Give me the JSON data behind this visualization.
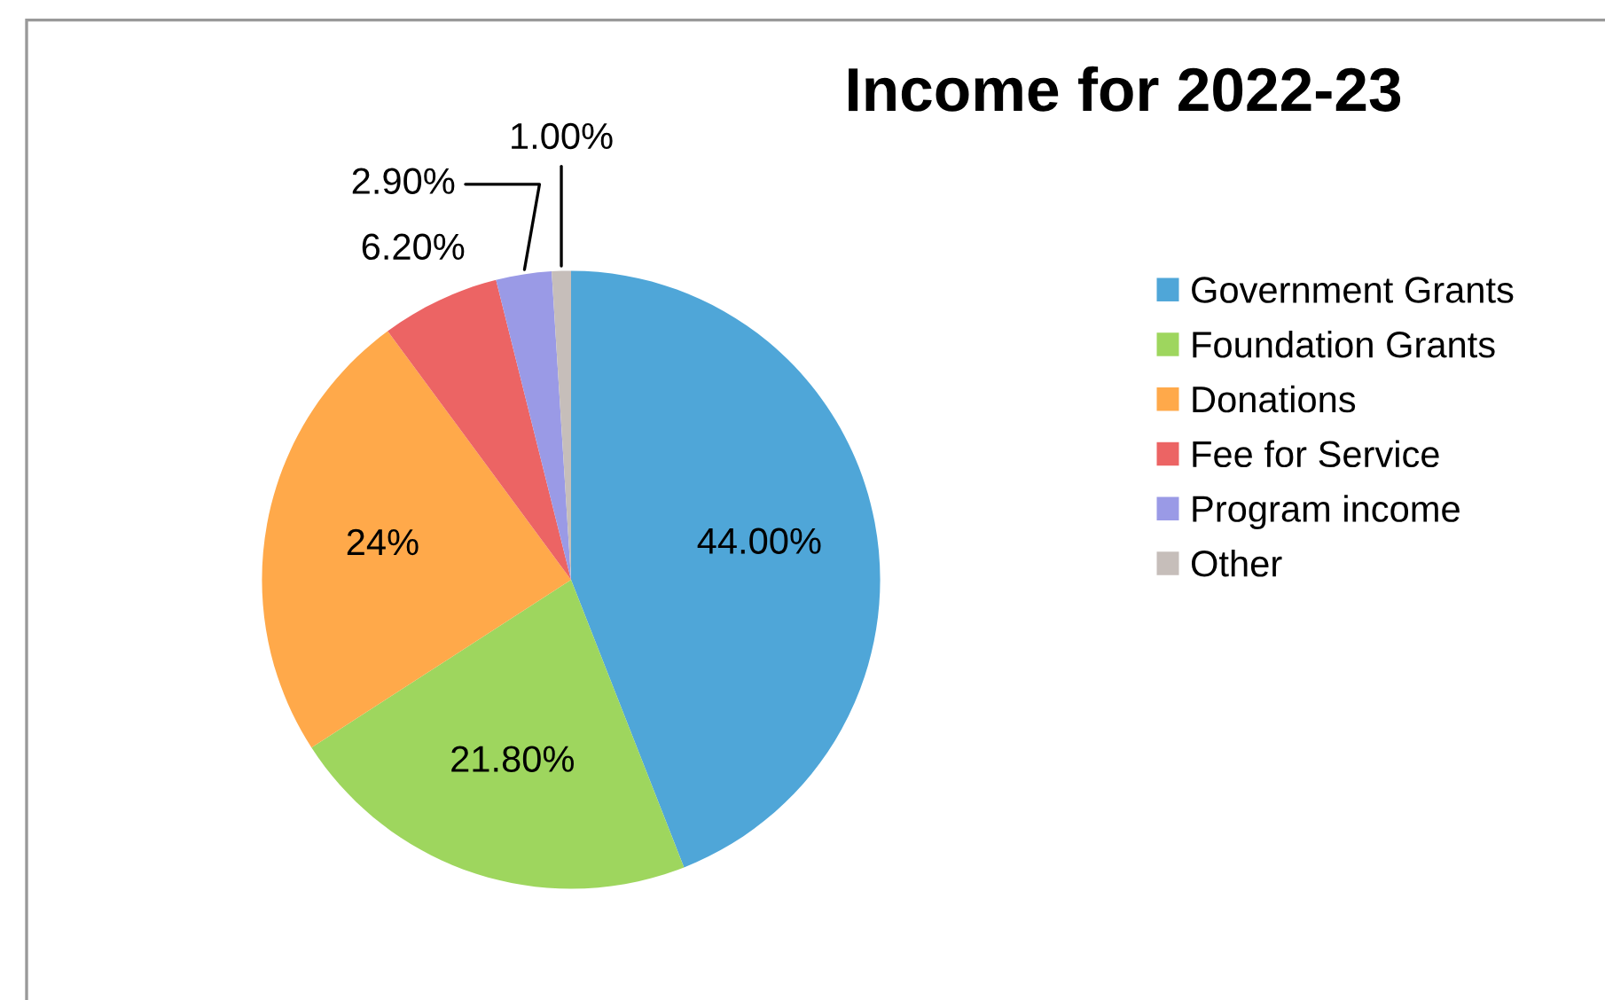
{
  "chart_data": {
    "type": "pie",
    "title": "Income for 2022-23",
    "categories": [
      "Government Grants",
      "Foundation Grants",
      "Donations",
      "Fee for Service",
      "Program income",
      "Other"
    ],
    "values": [
      44.0,
      21.8,
      24,
      6.2,
      2.9,
      1.0
    ],
    "value_labels": [
      "44.00%",
      "21.80%",
      "24%",
      "6.20%",
      "2.90%",
      "1.00%"
    ],
    "colors": [
      "#4fa6d8",
      "#9ed65e",
      "#ffa94a",
      "#ec6464",
      "#9a9ae6",
      "#c6beba"
    ],
    "legend": "right"
  }
}
